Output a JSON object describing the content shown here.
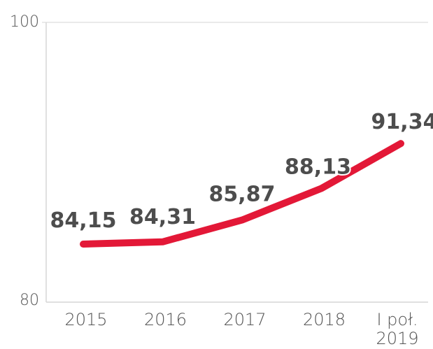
{
  "chart_data": {
    "type": "line",
    "categories": [
      "2015",
      "2016",
      "2017",
      "2018",
      "I poł. 2019"
    ],
    "series": [
      {
        "values": [
          84.15,
          84.31,
          85.87,
          88.13,
          91.34
        ]
      }
    ],
    "data_labels": [
      "84,15",
      "84,31",
      "85,87",
      "88,13",
      "91,34"
    ],
    "y_ticks": [
      "80",
      "100"
    ],
    "ylim": [
      80,
      100
    ],
    "grid": false,
    "line_color": "#e31837",
    "label_color": "#4d4d4d",
    "axis_color": "#d0d0d0"
  }
}
